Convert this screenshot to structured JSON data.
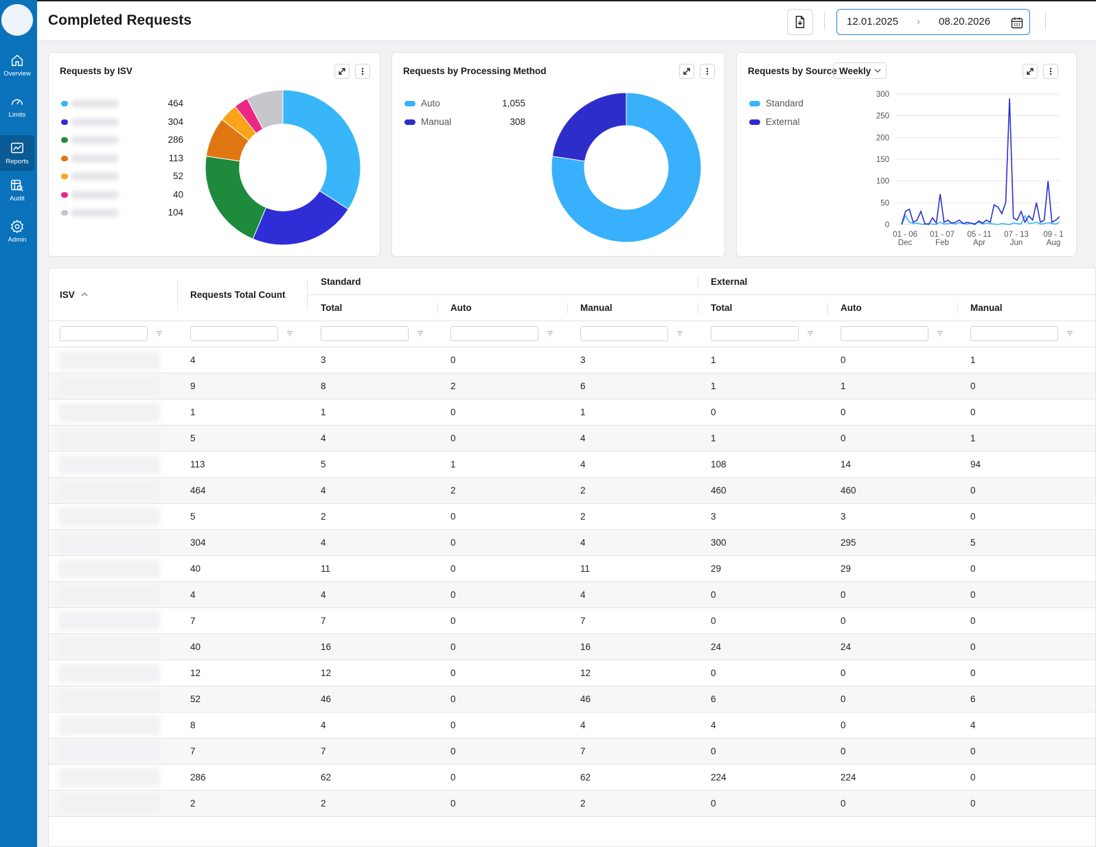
{
  "header": {
    "title": "Completed Requests",
    "date_from": "12.01.2025",
    "date_to": "08.20.2026",
    "arrow": "›"
  },
  "sidebar": {
    "items": [
      {
        "label": "Overview",
        "icon": "home-icon"
      },
      {
        "label": "Limits",
        "icon": "gauge-icon"
      },
      {
        "label": "Reports",
        "icon": "chart-icon"
      },
      {
        "label": "Audit",
        "icon": "audit-search-icon"
      },
      {
        "label": "Admin",
        "icon": "gear-icon"
      }
    ],
    "active": "Reports"
  },
  "cards": {
    "isv": {
      "title": "Requests by ISV",
      "legend": [
        {
          "value": "464",
          "color": "#38b6f9"
        },
        {
          "value": "304",
          "color": "#2f2ed6"
        },
        {
          "value": "286",
          "color": "#1e8a3c"
        },
        {
          "value": "113",
          "color": "#e07612"
        },
        {
          "value": "52",
          "color": "#fca31c"
        },
        {
          "value": "40",
          "color": "#ec2683"
        },
        {
          "value": "104",
          "color": "#c5c7cc"
        }
      ]
    },
    "method": {
      "title": "Requests by Processing Method",
      "legend": [
        {
          "label": "Auto",
          "value": "1,055",
          "color": "#38b0fb"
        },
        {
          "label": "Manual",
          "value": "308",
          "color": "#2d2ec9"
        }
      ]
    },
    "source": {
      "title": "Requests by Source",
      "granularity": "Weekly",
      "legend": [
        {
          "label": "Standard",
          "color": "#38b6f9"
        },
        {
          "label": "External",
          "color": "#2a2ed0"
        }
      ]
    }
  },
  "chart_data": [
    {
      "type": "pie",
      "title": "Requests by ISV",
      "values": [
        464,
        304,
        286,
        113,
        52,
        40,
        104
      ],
      "colors": [
        "#38b6f9",
        "#2f2ed6",
        "#1e8a3c",
        "#e07612",
        "#fca31c",
        "#ec2683",
        "#c5c7cc"
      ]
    },
    {
      "type": "pie",
      "title": "Requests by Processing Method",
      "categories": [
        "Auto",
        "Manual"
      ],
      "values": [
        1055,
        308
      ],
      "colors": [
        "#38b0fb",
        "#2d2ec9"
      ]
    },
    {
      "type": "line",
      "title": "Requests by Source",
      "ylim": [
        0,
        300
      ],
      "yticks": [
        "0",
        "50",
        "100",
        "150",
        "200",
        "250",
        "300"
      ],
      "xtick_labels": [
        {
          "top": "01 - 06",
          "bottom": "Dec"
        },
        {
          "top": "01 - 07",
          "bottom": "Feb"
        },
        {
          "top": "05 - 11",
          "bottom": "Apr"
        },
        {
          "top": "07 - 13",
          "bottom": "Jun"
        },
        {
          "top": "09 - 1",
          "bottom": "Aug"
        }
      ],
      "series": [
        {
          "name": "Standard",
          "color": "#38b6f9",
          "values": [
            0,
            20,
            5,
            2,
            3,
            1,
            0,
            2,
            1,
            0,
            5,
            1,
            2,
            3,
            1,
            4,
            2,
            1,
            3,
            2,
            5,
            1,
            3,
            2,
            1,
            0,
            2,
            1,
            0,
            3,
            2,
            1,
            20,
            2,
            3,
            5,
            1,
            2,
            4,
            2,
            1,
            5
          ]
        },
        {
          "name": "External",
          "color": "#2a2ed0",
          "values": [
            0,
            30,
            35,
            5,
            10,
            30,
            2,
            0,
            15,
            3,
            70,
            5,
            10,
            3,
            5,
            10,
            2,
            5,
            3,
            0,
            8,
            3,
            10,
            5,
            45,
            40,
            25,
            50,
            290,
            15,
            10,
            30,
            5,
            20,
            10,
            50,
            5,
            10,
            100,
            5,
            10,
            18
          ]
        }
      ]
    }
  ],
  "table": {
    "columns": {
      "isv": "ISV",
      "total_count": "Requests Total Count",
      "standard": "Standard",
      "external": "External",
      "total": "Total",
      "auto": "Auto",
      "manual": "Manual"
    },
    "rows": [
      [
        "4",
        "3",
        "0",
        "3",
        "1",
        "0",
        "1"
      ],
      [
        "9",
        "8",
        "2",
        "6",
        "1",
        "1",
        "0"
      ],
      [
        "1",
        "1",
        "0",
        "1",
        "0",
        "0",
        "0"
      ],
      [
        "5",
        "4",
        "0",
        "4",
        "1",
        "0",
        "1"
      ],
      [
        "113",
        "5",
        "1",
        "4",
        "108",
        "14",
        "94"
      ],
      [
        "464",
        "4",
        "2",
        "2",
        "460",
        "460",
        "0"
      ],
      [
        "5",
        "2",
        "0",
        "2",
        "3",
        "3",
        "0"
      ],
      [
        "304",
        "4",
        "0",
        "4",
        "300",
        "295",
        "5"
      ],
      [
        "40",
        "11",
        "0",
        "11",
        "29",
        "29",
        "0"
      ],
      [
        "4",
        "4",
        "0",
        "4",
        "0",
        "0",
        "0"
      ],
      [
        "7",
        "7",
        "0",
        "7",
        "0",
        "0",
        "0"
      ],
      [
        "40",
        "16",
        "0",
        "16",
        "24",
        "24",
        "0"
      ],
      [
        "12",
        "12",
        "0",
        "12",
        "0",
        "0",
        "0"
      ],
      [
        "52",
        "46",
        "0",
        "46",
        "6",
        "0",
        "6"
      ],
      [
        "8",
        "4",
        "0",
        "4",
        "4",
        "0",
        "4"
      ],
      [
        "7",
        "7",
        "0",
        "7",
        "0",
        "0",
        "0"
      ],
      [
        "286",
        "62",
        "0",
        "62",
        "224",
        "224",
        "0"
      ],
      [
        "2",
        "2",
        "0",
        "2",
        "0",
        "0",
        "0"
      ]
    ]
  }
}
